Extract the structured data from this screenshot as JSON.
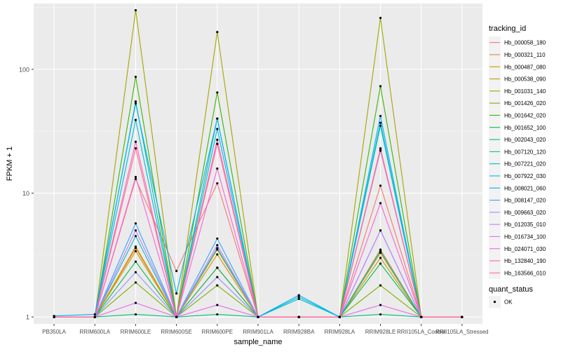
{
  "chart_data": {
    "type": "line",
    "xlabel": "sample_name",
    "ylabel": "FPKM + 1",
    "y_scale": "log10",
    "y_ticks": [
      {
        "value": 1,
        "label": "1"
      },
      {
        "value": 10,
        "label": "10"
      },
      {
        "value": 100,
        "label": "100"
      }
    ],
    "ylim": [
      0.88,
      340
    ],
    "categories": [
      "PB350LA",
      "RRIM600LA",
      "RRIM600LE",
      "RRIM600SE",
      "RRIM600PE",
      "RRIM901LA",
      "RRIM928BA",
      "RRIM928LA",
      "RRIM928LE",
      "RRII105LA_Control",
      "RRII105LA_Stressed"
    ],
    "legend_position": "right",
    "grid": true,
    "series": [
      {
        "name": "Hb_000058_180",
        "color": "#F8766D",
        "values": [
          1.0,
          1.0,
          13.0,
          2.35,
          12.0,
          1.0,
          1.0,
          1.0,
          11.5,
          1.0,
          1.0
        ]
      },
      {
        "name": "Hb_000321_110",
        "color": "#EA8331",
        "values": [
          1.0,
          1.0,
          3.6,
          1.0,
          2.5,
          1.0,
          1.0,
          1.0,
          3.5,
          1.0,
          1.0
        ]
      },
      {
        "name": "Hb_000487_080",
        "color": "#D89000",
        "values": [
          1.0,
          1.0,
          3.7,
          1.0,
          3.2,
          1.0,
          1.0,
          1.0,
          3.3,
          1.0,
          1.0
        ]
      },
      {
        "name": "Hb_000538_090",
        "color": "#C09B00",
        "values": [
          1.0,
          1.0,
          3.4,
          1.0,
          3.5,
          1.0,
          1.0,
          1.0,
          3.0,
          1.0,
          1.0
        ]
      },
      {
        "name": "Hb_001031_140",
        "color": "#A3A500",
        "values": [
          1.0,
          1.0,
          300.0,
          1.0,
          200.0,
          1.0,
          1.0,
          1.0,
          260.0,
          1.0,
          1.0
        ]
      },
      {
        "name": "Hb_001426_020",
        "color": "#7CAE00",
        "values": [
          1.0,
          1.0,
          1.9,
          1.0,
          1.8,
          1.0,
          1.0,
          1.0,
          1.8,
          1.0,
          1.0
        ]
      },
      {
        "name": "Hb_001642_020",
        "color": "#39B600",
        "values": [
          1.0,
          1.0,
          87.0,
          1.0,
          65.0,
          1.0,
          1.0,
          1.0,
          73.0,
          1.0,
          1.0
        ]
      },
      {
        "name": "Hb_001652_100",
        "color": "#00BB4E",
        "values": [
          1.0,
          1.0,
          2.8,
          1.0,
          2.5,
          1.0,
          1.0,
          1.0,
          2.7,
          1.0,
          1.0
        ]
      },
      {
        "name": "Hb_002043_020",
        "color": "#00BF7D",
        "values": [
          1.0,
          1.0,
          1.05,
          1.0,
          1.05,
          1.0,
          1.0,
          1.0,
          1.05,
          1.0,
          1.0
        ]
      },
      {
        "name": "Hb_007120_120",
        "color": "#00C1A3",
        "values": [
          1.0,
          1.0,
          55.0,
          1.0,
          40.0,
          1.0,
          1.0,
          1.0,
          37.0,
          1.0,
          1.0
        ]
      },
      {
        "name": "Hb_007221_020",
        "color": "#00BFC4",
        "values": [
          1.0,
          1.0,
          4.5,
          1.0,
          3.6,
          1.0,
          1.4,
          1.0,
          3.4,
          1.0,
          1.0
        ]
      },
      {
        "name": "Hb_007922_030",
        "color": "#00BAE0",
        "values": [
          1.0,
          1.0,
          39.0,
          1.0,
          33.0,
          1.0,
          1.45,
          1.0,
          35.0,
          1.0,
          1.0
        ]
      },
      {
        "name": "Hb_008021_060",
        "color": "#00B0F6",
        "values": [
          1.02,
          1.05,
          53.0,
          1.55,
          40.0,
          1.0,
          1.5,
          1.0,
          42.0,
          1.0,
          1.0
        ]
      },
      {
        "name": "Hb_008147_020",
        "color": "#35A2FF",
        "values": [
          1.0,
          1.0,
          5.7,
          1.0,
          4.3,
          1.0,
          1.0,
          1.0,
          5.0,
          1.0,
          1.0
        ]
      },
      {
        "name": "Hb_009663_020",
        "color": "#9590FF",
        "values": [
          1.0,
          1.0,
          2.3,
          1.0,
          2.1,
          1.0,
          1.0,
          1.0,
          22.0,
          1.0,
          1.0
        ]
      },
      {
        "name": "Hb_012035_010",
        "color": "#C77CFF",
        "values": [
          1.0,
          1.0,
          5.0,
          1.0,
          3.8,
          1.0,
          1.0,
          1.0,
          5.0,
          1.0,
          1.0
        ]
      },
      {
        "name": "Hb_016734_100",
        "color": "#E76BF3",
        "values": [
          1.0,
          1.0,
          1.3,
          1.0,
          1.25,
          1.0,
          1.0,
          1.0,
          1.25,
          1.0,
          1.0
        ]
      },
      {
        "name": "Hb_024071_030",
        "color": "#FA62DB",
        "values": [
          1.0,
          1.0,
          13.5,
          1.0,
          15.8,
          1.0,
          1.0,
          1.0,
          8.3,
          1.0,
          1.0
        ]
      },
      {
        "name": "Hb_132840_190",
        "color": "#FF62BC",
        "values": [
          1.0,
          1.0,
          26.0,
          1.0,
          27.0,
          1.0,
          1.0,
          1.0,
          23.0,
          1.0,
          1.0
        ]
      },
      {
        "name": "Hb_163566_010",
        "color": "#FF6C91",
        "values": [
          1.0,
          1.0,
          23.0,
          1.0,
          25.0,
          1.0,
          1.0,
          1.0,
          22.5,
          1.0,
          1.0
        ]
      }
    ],
    "legends": [
      {
        "title": "tracking_id",
        "kind": "series"
      },
      {
        "title": "quant_status",
        "kind": "points",
        "items": [
          {
            "label": "OK"
          }
        ]
      }
    ]
  }
}
